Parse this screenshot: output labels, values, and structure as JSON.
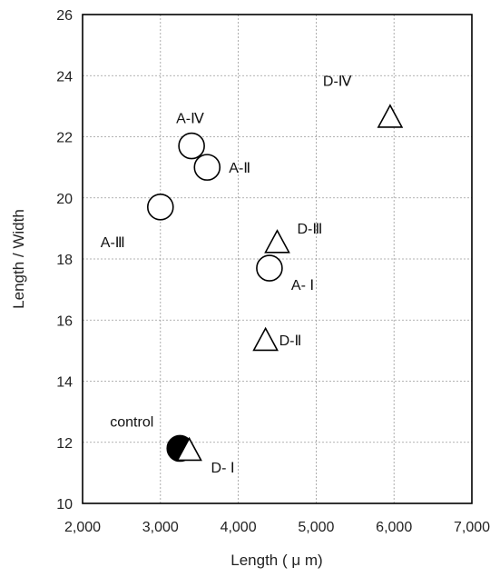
{
  "chart_data": {
    "type": "scatter",
    "title": "",
    "xlabel": "Length ( μ m)",
    "ylabel": "Length / Width",
    "xlim": [
      2000,
      7000
    ],
    "ylim": [
      10,
      26
    ],
    "x_ticks": [
      2000,
      3000,
      4000,
      5000,
      6000,
      7000
    ],
    "x_tick_labels": [
      "2,000",
      "3,000",
      "4,000",
      "5,000",
      "6,000",
      "7,000"
    ],
    "y_ticks": [
      10,
      12,
      14,
      16,
      18,
      20,
      22,
      24,
      26
    ],
    "y_tick_labels": [
      "10",
      "12",
      "14",
      "16",
      "18",
      "20",
      "22",
      "24",
      "26"
    ],
    "grid": true,
    "legend": "none",
    "points": [
      {
        "label": "A-Ⅳ",
        "x": 3400,
        "y": 21.7,
        "marker": "circle"
      },
      {
        "label": "A-Ⅱ",
        "x": 3600,
        "y": 21.0,
        "marker": "circle"
      },
      {
        "label": "A-Ⅲ",
        "x": 3000,
        "y": 19.7,
        "marker": "circle"
      },
      {
        "label": "A- Ⅰ",
        "x": 4400,
        "y": 17.7,
        "marker": "circle"
      },
      {
        "label": "D-Ⅳ",
        "x": 5950,
        "y": 22.6,
        "marker": "triangle"
      },
      {
        "label": "D-Ⅲ",
        "x": 4500,
        "y": 18.5,
        "marker": "triangle"
      },
      {
        "label": "D-Ⅱ",
        "x": 4350,
        "y": 15.3,
        "marker": "triangle"
      },
      {
        "label": "D- Ⅰ",
        "x": 3370,
        "y": 11.7,
        "marker": "triangle"
      },
      {
        "label": "control",
        "x": 3250,
        "y": 11.8,
        "marker": "filled-circle"
      }
    ]
  }
}
